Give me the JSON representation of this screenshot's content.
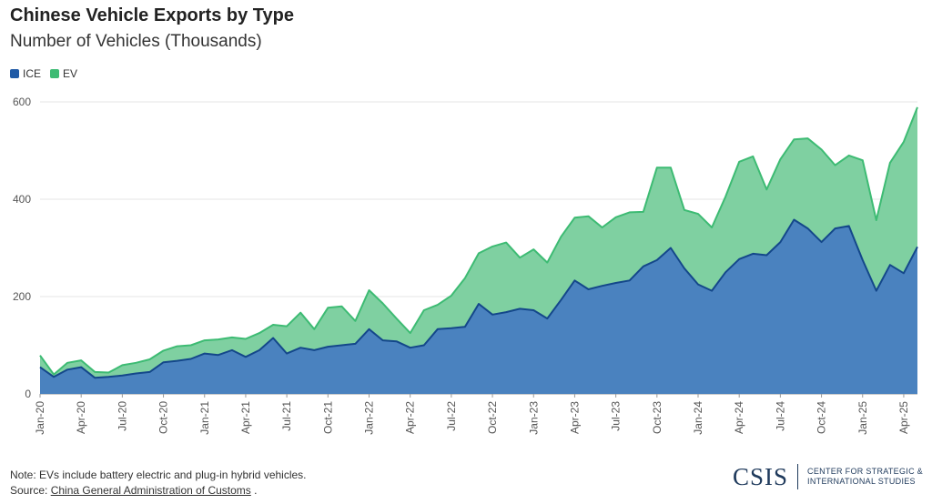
{
  "header": {
    "title": "Chinese Vehicle Exports by Type",
    "subtitle": "Number of Vehicles (Thousands)"
  },
  "legend": [
    {
      "label": "ICE",
      "color": "#1f5aa6"
    },
    {
      "label": "EV",
      "color": "#3dbb73"
    }
  ],
  "footer": {
    "note": "Note: EVs include battery electric and plug-in hybrid vehicles.",
    "source_prefix": "Source: ",
    "source_link": "China General Administration of Customs",
    "source_suffix": " ."
  },
  "logo": {
    "mark": "CSIS",
    "line1": "CENTER FOR STRATEGIC &",
    "line2": "INTERNATIONAL STUDIES"
  },
  "chart_data": {
    "type": "area",
    "stacked": true,
    "title": "Chinese Vehicle Exports by Type",
    "subtitle": "Number of Vehicles (Thousands)",
    "xlabel": "",
    "ylabel": "",
    "ylim": [
      0,
      600
    ],
    "yticks": [
      0,
      200,
      400,
      600
    ],
    "grid": true,
    "legend_position": "top-left",
    "x_tick_labels": [
      "Jan-20",
      "Apr-20",
      "Jul-20",
      "Oct-20",
      "Jan-21",
      "Apr-21",
      "Jul-21",
      "Oct-21",
      "Jan-22",
      "Apr-22",
      "Jul-22",
      "Oct-22",
      "Jan-23",
      "Apr-23",
      "Jul-23",
      "Oct-23",
      "Jan-24",
      "Apr-24",
      "Jul-24",
      "Oct-24",
      "Jan-25",
      "Apr-25"
    ],
    "x": [
      "Jan-20",
      "Feb-20",
      "Mar-20",
      "Apr-20",
      "May-20",
      "Jun-20",
      "Jul-20",
      "Aug-20",
      "Sep-20",
      "Oct-20",
      "Nov-20",
      "Dec-20",
      "Jan-21",
      "Feb-21",
      "Mar-21",
      "Apr-21",
      "May-21",
      "Jun-21",
      "Jul-21",
      "Aug-21",
      "Sep-21",
      "Oct-21",
      "Nov-21",
      "Dec-21",
      "Jan-22",
      "Feb-22",
      "Mar-22",
      "Apr-22",
      "May-22",
      "Jun-22",
      "Jul-22",
      "Aug-22",
      "Sep-22",
      "Oct-22",
      "Nov-22",
      "Dec-22",
      "Jan-23",
      "Feb-23",
      "Mar-23",
      "Apr-23",
      "May-23",
      "Jun-23",
      "Jul-23",
      "Aug-23",
      "Sep-23",
      "Oct-23",
      "Nov-23",
      "Dec-23",
      "Jan-24",
      "Feb-24",
      "Mar-24",
      "Apr-24",
      "May-24",
      "Jun-24",
      "Jul-24",
      "Aug-24",
      "Sep-24",
      "Oct-24",
      "Nov-24",
      "Dec-24",
      "Jan-25",
      "Feb-25",
      "Mar-25",
      "Apr-25",
      "May-25"
    ],
    "series": [
      {
        "name": "ICE",
        "color": "#1f5aa6",
        "values": [
          55,
          35,
          50,
          55,
          33,
          35,
          38,
          42,
          45,
          65,
          68,
          72,
          83,
          80,
          90,
          76,
          90,
          115,
          83,
          95,
          90,
          97,
          100,
          103,
          133,
          110,
          108,
          95,
          100,
          133,
          135,
          138,
          185,
          163,
          168,
          175,
          172,
          155,
          193,
          233,
          215,
          222,
          228,
          233,
          262,
          275,
          300,
          258,
          225,
          212,
          250,
          277,
          288,
          285,
          312,
          358,
          340,
          312,
          340,
          345,
          275,
          212,
          265,
          248,
          302
        ]
      },
      {
        "name": "EV",
        "color": "#3dbb73",
        "values": [
          24,
          5,
          14,
          14,
          12,
          9,
          21,
          22,
          26,
          24,
          30,
          28,
          27,
          32,
          26,
          37,
          35,
          27,
          56,
          72,
          43,
          80,
          80,
          47,
          80,
          76,
          47,
          30,
          72,
          50,
          67,
          100,
          104,
          140,
          143,
          105,
          125,
          115,
          130,
          129,
          150,
          120,
          135,
          140,
          112,
          190,
          165,
          120,
          145,
          130,
          155,
          200,
          200,
          135,
          170,
          165,
          185,
          190,
          130,
          145,
          205,
          145,
          210,
          270,
          287
        ]
      }
    ]
  }
}
